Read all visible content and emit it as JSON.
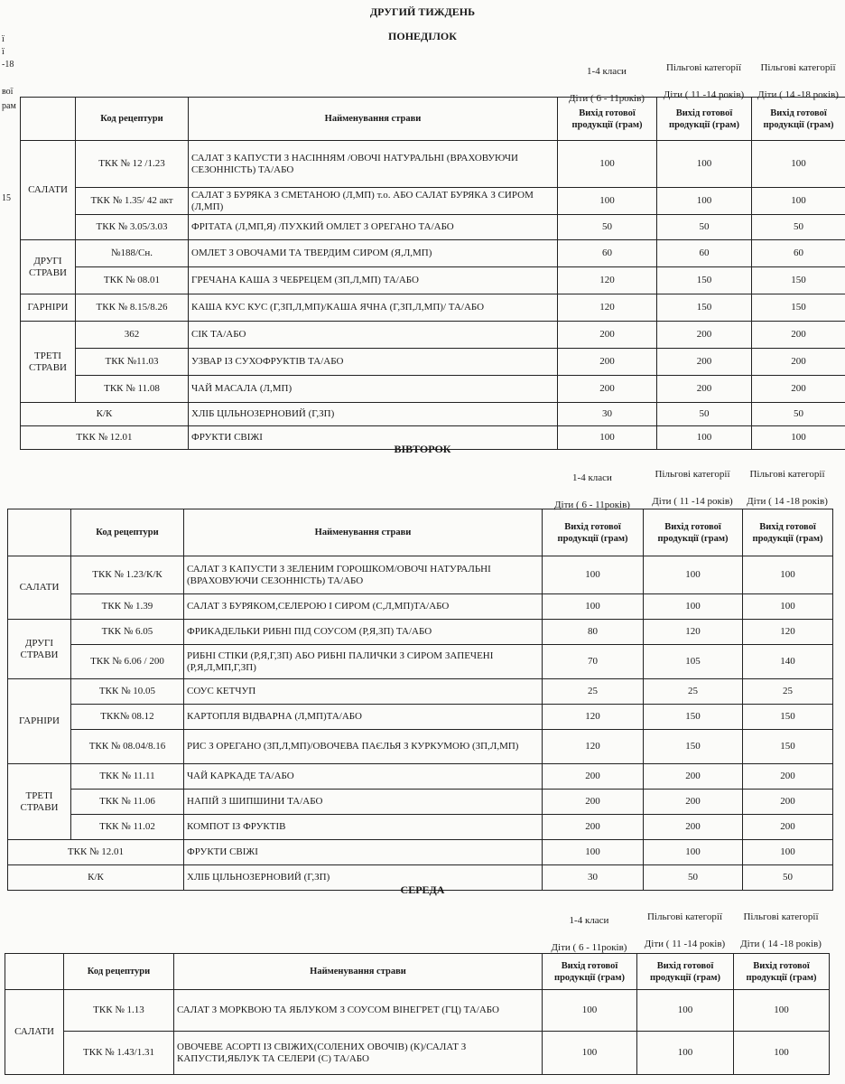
{
  "document": {
    "week_title": "ДРУГИЙ ТИЖДЕНЬ",
    "margin_fragments": [
      "ї",
      "ї",
      "-18",
      "вої",
      "рам",
      "15"
    ]
  },
  "column_headers": {
    "code": "Код рецептури",
    "name": "Найменування страви",
    "output": "Вихід готової продукції (грам)",
    "group1_title": "1-4 класи",
    "group1_age": "Діти ( 6 - 11років)",
    "group2_title": "Пільгові категорії",
    "group2_age": "Діти ( 11 -14 років)",
    "group3_title": "Пільгові категорії",
    "group3_age": "Діти ( 14 -18 років)"
  },
  "days": [
    {
      "day": "ПОНЕДІЛОК",
      "groups": [
        {
          "category": "САЛАТИ",
          "rows": [
            {
              "code": "ТКК № 12 /1.23",
              "name": "САЛАТ З КАПУСТИ З НАСІННЯМ /ОВОЧІ НАТУРАЛЬНІ (ВРАХОВУЮЧИ СЕЗОННІСТЬ)  ТА/АБО",
              "v": [
                "100",
                "100",
                "100"
              ]
            },
            {
              "code": "ТКК № 1.35/ 42 акт",
              "name": "САЛАТ З БУРЯКА З СМЕТАНОЮ (Л,МП)  т.о.  АБО САЛАТ БУРЯКА З СИРОМ (Л,МП)",
              "v": [
                "100",
                "100",
                "100"
              ]
            },
            {
              "code": "ТКК № 3.05/3.03",
              "name": "ФРІТАТА (Л,МП,Я) /ПУХКИЙ ОМЛЕТ З ОРЕГАНО ТА/АБО",
              "v": [
                "50",
                "50",
                "50"
              ]
            }
          ]
        },
        {
          "category": "ДРУГІ СТРАВИ",
          "rows": [
            {
              "code": "№188/Сн.",
              "name": "ОМЛЕТ З ОВОЧАМИ ТА  ТВЕРДИМ СИРОМ  (Я,Л,МП)",
              "v": [
                "60",
                "60",
                "60"
              ]
            },
            {
              "code": "ТКК № 08.01",
              "name": "ГРЕЧАНА КАША З ЧЕБРЕЦЕМ (ЗП,Л,МП) ТА/АБО",
              "v": [
                "120",
                "150",
                "150"
              ]
            }
          ]
        },
        {
          "category": "ГАРНІРИ",
          "rows": [
            {
              "code": "ТКК № 8.15/8.26",
              "name": "КАША КУС КУС (Г,ЗП,Л,МП)/КАША ЯЧНА   (Г,ЗП,Л,МП)/  ТА/АБО",
              "v": [
                "120",
                "150",
                "150"
              ]
            }
          ]
        },
        {
          "category": "ТРЕТІ СТРАВИ",
          "rows": [
            {
              "code": "362",
              "name": "СІК ТА/АБО",
              "v": [
                "200",
                "200",
                "200"
              ]
            },
            {
              "code": "ТКК №11.03",
              "name": "УЗВАР ІЗ СУХОФРУКТІВ ТА/АБО",
              "v": [
                "200",
                "200",
                "200"
              ]
            },
            {
              "code": "ТКК № 11.08",
              "name": "ЧАЙ МАСАЛА  (Л,МП)",
              "v": [
                "200",
                "200",
                "200"
              ]
            }
          ]
        },
        {
          "category": null,
          "rows": [
            {
              "code": "К/К",
              "name": "ХЛІБ ЦІЛЬНОЗЕРНОВИЙ (Г,ЗП)",
              "v": [
                "30",
                "50",
                "50"
              ]
            },
            {
              "code": "ТКК № 12.01",
              "name": "ФРУКТИ СВІЖІ",
              "v": [
                "100",
                "100",
                "100"
              ]
            }
          ]
        }
      ]
    },
    {
      "day": "ВІВТОРОК",
      "groups": [
        {
          "category": "САЛАТИ",
          "rows": [
            {
              "code": "ТКК № 1.23/К/К",
              "name": "САЛАТ З КАПУСТИ З ЗЕЛЕНИМ ГОРОШКОМ/ОВОЧІ НАТУРАЛЬНІ (ВРАХОВУЮЧИ СЕЗОННІСТЬ)  ТА/АБО",
              "v": [
                "100",
                "100",
                "100"
              ]
            },
            {
              "code": "ТКК № 1.39",
              "name": "САЛАТ З БУРЯКОМ,СЕЛЕРОЮ І СИРОМ  (С,Л,МП)ТА/АБО",
              "v": [
                "100",
                "100",
                "100"
              ]
            }
          ]
        },
        {
          "category": "ДРУГІ СТРАВИ",
          "rows": [
            {
              "code": "ТКК № 6.05",
              "name": "ФРИКАДЕЛЬКИ РИБНІ ПІД СОУСОМ  (Р,Я,ЗП) ТА/АБО",
              "v": [
                "80",
                "120",
                "120"
              ]
            },
            {
              "code": "ТКК № 6.06 / 200",
              "name": "РИБНІ СТІКИ (Р,Я,Г,ЗП) АБО РИБНІ ПАЛИЧКИ З СИРОМ ЗАПЕЧЕНІ (Р,Я,Л,МП,Г,ЗП)",
              "v": [
                "70",
                "105",
                "140"
              ]
            }
          ]
        },
        {
          "category": "ГАРНІРИ",
          "rows": [
            {
              "code": "ТКК № 10.05",
              "name": "СОУС КЕТЧУП",
              "v": [
                "25",
                "25",
                "25"
              ]
            },
            {
              "code": "ТКК№ 08.12",
              "name": "КАРТОПЛЯ ВІДВАРНА (Л,МП)ТА/АБО",
              "v": [
                "120",
                "150",
                "150"
              ]
            },
            {
              "code": "ТКК № 08.04/8.16",
              "name": "РИС З ОРЕГАНО (ЗП,Л,МП)/ОВОЧЕВА ПАЄЛЬЯ З КУРКУМОЮ (ЗП,Л,МП)",
              "v": [
                "120",
                "150",
                "150"
              ]
            }
          ]
        },
        {
          "category": "ТРЕТІ СТРАВИ",
          "rows": [
            {
              "code": "ТКК № 11.11",
              "name": "ЧАЙ  КАРКАДЕ ТА/АБО",
              "v": [
                "200",
                "200",
                "200"
              ]
            },
            {
              "code": "ТКК № 11.06",
              "name": "НАПІЙ З ШИПШИНИ ТА/АБО",
              "v": [
                "200",
                "200",
                "200"
              ]
            },
            {
              "code": "ТКК № 11.02",
              "name": "КОМПОТ ІЗ ФРУКТІВ",
              "v": [
                "200",
                "200",
                "200"
              ]
            }
          ]
        },
        {
          "category": null,
          "rows": [
            {
              "code": "ТКК № 12.01",
              "name": "ФРУКТИ СВІЖІ",
              "v": [
                "100",
                "100",
                "100"
              ]
            },
            {
              "code": "К/К",
              "name": "ХЛІБ ЦІЛЬНОЗЕРНОВИЙ  (Г,ЗП)",
              "v": [
                "30",
                "50",
                "50"
              ]
            }
          ]
        }
      ]
    },
    {
      "day": "СЕРЕДА",
      "groups": [
        {
          "category": "САЛАТИ",
          "rows": [
            {
              "code": "ТКК № 1.13",
              "name": "САЛАТ З МОРКВОЮ ТА ЯБЛУКОМ З СОУСОМ ВІНЕГРЕТ (ГЦ) ТА/АБО",
              "v": [
                "100",
                "100",
                "100"
              ]
            },
            {
              "code": "ТКК № 1.43/1.31",
              "name": "ОВОЧЕВЕ АСОРТІ ІЗ СВІЖИХ(СОЛЕНИХ ОВОЧІВ) (К)/САЛАТ З КАПУСТИ,ЯБЛУК ТА СЕЛЕРИ  (С) ТА/АБО",
              "v": [
                "100",
                "100",
                "100"
              ]
            }
          ]
        }
      ]
    }
  ]
}
